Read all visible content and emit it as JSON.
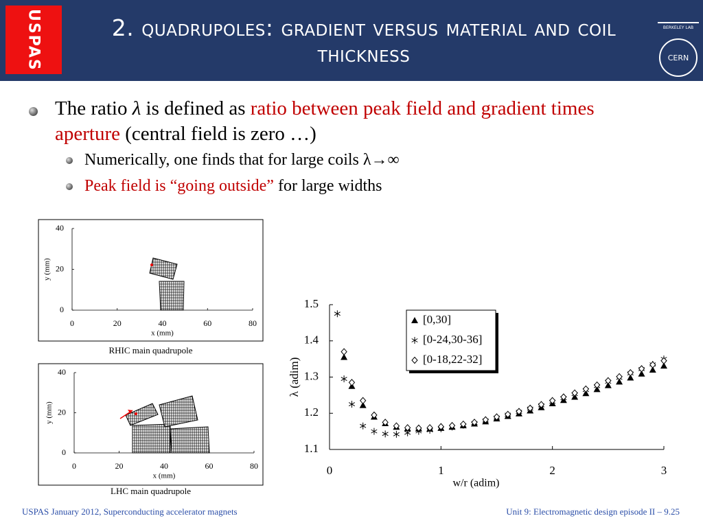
{
  "header": {
    "title": "2. Quadrupoles: gradient versus material and coil thickness",
    "logo": "USPAS",
    "lab_logo": "BERKELEY LAB",
    "cern_logo": "CERN"
  },
  "bullets": [
    {
      "parts": [
        {
          "text": "The ratio ",
          "style": "plain"
        },
        {
          "text": "λ",
          "style": "italic"
        },
        {
          "text": " is defined as ",
          "style": "plain"
        },
        {
          "text": "ratio between peak field and gradient times aperture",
          "style": "red"
        },
        {
          "text": " (central field is zero …)",
          "style": "plain"
        }
      ],
      "sub": [
        {
          "parts": [
            {
              "text": "Numerically, one finds that for large coils λ→∞",
              "style": "plain"
            }
          ]
        },
        {
          "parts": [
            {
              "text": "Peak field is “going outside”",
              "style": "red"
            },
            {
              "text": " for large widths",
              "style": "plain"
            }
          ]
        }
      ]
    }
  ],
  "chart_data": [
    {
      "type": "coil",
      "caption": "RHIC main quadrupole",
      "xlabel": "x (mm)",
      "ylabel": "y (mm)",
      "xlim": [
        0,
        80
      ],
      "ylim": [
        0,
        40
      ],
      "xticks": [
        0,
        20,
        40,
        60,
        80
      ],
      "yticks": [
        0,
        20,
        40
      ]
    },
    {
      "type": "coil",
      "caption": "LHC main quadrupole",
      "xlabel": "x (mm)",
      "ylabel": "y (mm)",
      "xlim": [
        0,
        80
      ],
      "ylim": [
        0,
        40
      ],
      "xticks": [
        0,
        20,
        40,
        60,
        80
      ],
      "yticks": [
        0,
        20,
        40
      ]
    },
    {
      "type": "scatter",
      "xlabel": "w/r  (adim)",
      "ylabel": "λ  (adim)",
      "xlim": [
        0,
        3
      ],
      "ylim": [
        1.1,
        1.5
      ],
      "xticks": [
        0,
        1,
        2,
        3
      ],
      "yticks": [
        1.1,
        1.2,
        1.3,
        1.4,
        1.5
      ],
      "legend": "top",
      "series": [
        {
          "name": "[0,30]",
          "marker": "triangle",
          "color": "#000000",
          "x": [
            0.13,
            0.2,
            0.3,
            0.4,
            0.5,
            0.6,
            0.7,
            0.8,
            0.9,
            1.0,
            1.1,
            1.2,
            1.3,
            1.4,
            1.5,
            1.6,
            1.7,
            1.8,
            1.9,
            2.0,
            2.1,
            2.2,
            2.3,
            2.4,
            2.5,
            2.6,
            2.7,
            2.8,
            2.9,
            3.0
          ],
          "values": [
            1.355,
            1.275,
            1.222,
            1.19,
            1.172,
            1.162,
            1.158,
            1.157,
            1.157,
            1.159,
            1.162,
            1.166,
            1.171,
            1.177,
            1.185,
            1.192,
            1.199,
            1.207,
            1.216,
            1.227,
            1.236,
            1.245,
            1.255,
            1.266,
            1.277,
            1.287,
            1.298,
            1.309,
            1.32,
            1.331
          ]
        },
        {
          "name": "[0-24,30-36]",
          "marker": "asterisk",
          "color": "#000000",
          "x": [
            0.07,
            0.13,
            0.2,
            0.3,
            0.4,
            0.5,
            0.6,
            0.7,
            0.8,
            0.9,
            1.0,
            1.1,
            1.2,
            1.3,
            1.4,
            1.5,
            1.6,
            1.7,
            1.8,
            1.9,
            2.0,
            2.1,
            2.2,
            2.3,
            2.4,
            2.5,
            2.6,
            2.7,
            2.8,
            2.9,
            3.0
          ],
          "values": [
            1.475,
            1.295,
            1.225,
            1.165,
            1.15,
            1.143,
            1.142,
            1.146,
            1.15,
            1.153,
            1.157,
            1.162,
            1.167,
            1.173,
            1.18,
            1.188,
            1.196,
            1.204,
            1.213,
            1.222,
            1.232,
            1.242,
            1.253,
            1.264,
            1.275,
            1.287,
            1.298,
            1.31,
            1.322,
            1.335,
            1.35
          ]
        },
        {
          "name": "[0-18,22-32]",
          "marker": "diamond",
          "color": "#000000",
          "x": [
            0.13,
            0.2,
            0.3,
            0.4,
            0.5,
            0.6,
            0.7,
            0.8,
            0.9,
            1.0,
            1.1,
            1.2,
            1.3,
            1.4,
            1.5,
            1.6,
            1.7,
            1.8,
            1.9,
            2.0,
            2.1,
            2.2,
            2.3,
            2.4,
            2.5,
            2.6,
            2.7,
            2.8,
            2.9,
            3.0
          ],
          "values": [
            1.37,
            1.285,
            1.235,
            1.195,
            1.175,
            1.165,
            1.16,
            1.159,
            1.16,
            1.163,
            1.166,
            1.17,
            1.175,
            1.182,
            1.19,
            1.197,
            1.205,
            1.214,
            1.224,
            1.235,
            1.245,
            1.256,
            1.267,
            1.278,
            1.29,
            1.301,
            1.312,
            1.323,
            1.334,
            1.345
          ]
        }
      ]
    }
  ],
  "footer": {
    "left": "USPAS January 2012,  Superconducting accelerator magnets",
    "right": "Unit 9: Electromagnetic design episode II – 9.25"
  }
}
